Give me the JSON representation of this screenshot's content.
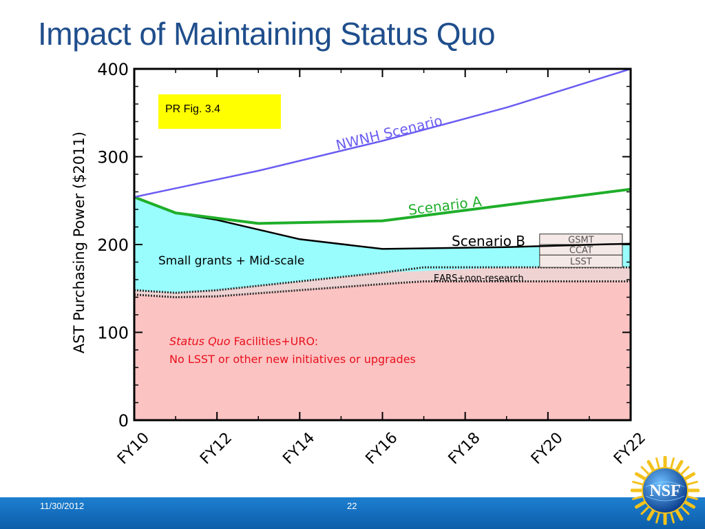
{
  "slide": {
    "title": "Impact of Maintaining Status Quo",
    "date": "11/30/2012",
    "page_number": "22",
    "logo_text": "NSF"
  },
  "chart_data": {
    "type": "area",
    "ylabel": "AST Purchasing Power ($2011)",
    "xlabel": "",
    "ylim": [
      0,
      400
    ],
    "xlim": [
      2010,
      2022
    ],
    "yticks": [
      0,
      100,
      200,
      300,
      400
    ],
    "xticks": [
      {
        "x": 2010,
        "label": "FY10"
      },
      {
        "x": 2012,
        "label": "FY12"
      },
      {
        "x": 2014,
        "label": "FY14"
      },
      {
        "x": 2016,
        "label": "FY16"
      },
      {
        "x": 2018,
        "label": "FY18"
      },
      {
        "x": 2020,
        "label": "FY20"
      },
      {
        "x": 2022,
        "label": "FY22"
      }
    ],
    "figure_note": "PR Fig. 3.4",
    "colors": {
      "nwnh": "#6a5cf2",
      "scenario_a": "#1fae2a",
      "scenario_b": "#000000",
      "small_grants": "#99fdfd",
      "ears": "#efd3d3",
      "status_quo": "#fcc3c3",
      "label_red": "#e8101b",
      "note_bg": "#ffff00"
    },
    "series": [
      {
        "name": "NWNH Scenario",
        "kind": "line",
        "x": [
          2010,
          2013,
          2016,
          2019,
          2022
        ],
        "values": [
          254,
          284,
          318,
          356,
          400
        ]
      },
      {
        "name": "Scenario A",
        "kind": "line",
        "x": [
          2010,
          2011,
          2013,
          2016,
          2019,
          2022
        ],
        "values": [
          254,
          236,
          224,
          227,
          245,
          263
        ]
      },
      {
        "name": "Scenario B",
        "kind": "line",
        "x": [
          2010,
          2011,
          2012,
          2014,
          2016,
          2019,
          2022
        ],
        "values": [
          254,
          236,
          228,
          206,
          195,
          197,
          201
        ]
      },
      {
        "name": "Small grants + Mid-scale",
        "kind": "area",
        "x": [
          2010,
          2011,
          2012,
          2014,
          2016,
          2019,
          2022
        ],
        "top": [
          254,
          236,
          228,
          206,
          195,
          197,
          201
        ],
        "bottom": [
          148,
          145,
          148,
          158,
          168,
          174,
          174
        ]
      },
      {
        "name": "EARS+non-research",
        "kind": "area",
        "x": [
          2010,
          2011,
          2012,
          2014,
          2016,
          2017,
          2022
        ],
        "top": [
          148,
          145,
          148,
          158,
          168,
          174,
          174
        ],
        "bottom": [
          143,
          140,
          141,
          148,
          155,
          158,
          158
        ]
      },
      {
        "name": "Status Quo Facilities+URO",
        "kind": "area",
        "x": [
          2010,
          2011,
          2012,
          2014,
          2016,
          2017,
          2022
        ],
        "top": [
          143,
          140,
          141,
          148,
          155,
          158,
          158
        ],
        "bottom": [
          0,
          0,
          0,
          0,
          0,
          0,
          0
        ]
      }
    ],
    "stack_boxes": [
      {
        "name": "GSMT",
        "x0": 2019.8,
        "x1": 2021.8,
        "y0": 200,
        "y1": 212
      },
      {
        "name": "CCAT",
        "x0": 2019.8,
        "x1": 2021.8,
        "y0": 188,
        "y1": 200
      },
      {
        "name": "LSST",
        "x0": 2019.8,
        "x1": 2021.8,
        "y0": 174,
        "y1": 188
      }
    ],
    "labels": {
      "nwnh": "NWNH Scenario",
      "scenario_a": "Scenario A",
      "scenario_b": "Scenario B",
      "small_grants": "Small grants + Mid-scale",
      "ears": "EARS+non-research",
      "status_quo_italic": "Status Quo",
      "status_quo_rest": " Facilities+URO:",
      "status_quo_line2": "No LSST or other new initiatives or upgrades"
    }
  }
}
